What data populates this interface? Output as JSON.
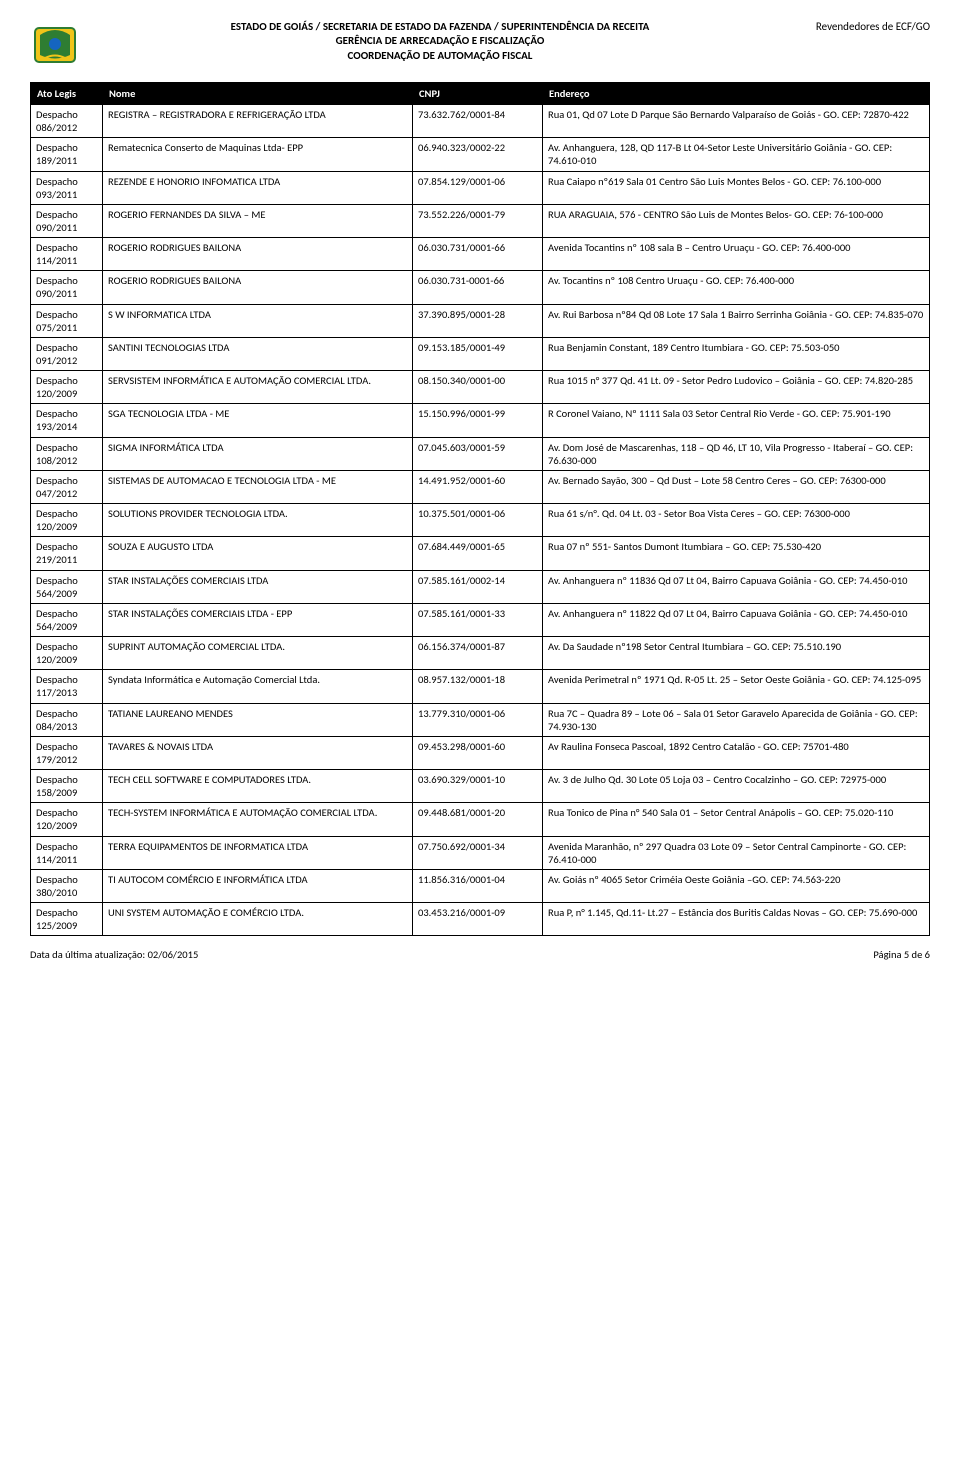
{
  "header": {
    "line1": "ESTADO DE GOIÁS / SECRETARIA DE ESTADO DA FAZENDA / SUPERINTENDÊNCIA DA RECEITA",
    "line2": "GERÊNCIA DE ARRECADAÇÃO E FISCALIZAÇÃO",
    "line3": "COORDENAÇÃO DE AUTOMAÇÃO FISCAL",
    "right": "Revendedores de ECF/GO"
  },
  "columns": {
    "ato": "Ato Legis",
    "nome": "Nome",
    "cnpj": "CNPJ",
    "endereco": "Endereço"
  },
  "rows": [
    {
      "ato": "Despacho 086/2012",
      "nome": "REGISTRA – REGISTRADORA E REFRIGERAÇÃO LTDA",
      "cnpj": "73.632.762/0001-84",
      "end": "Rua 01, Qd 07 Lote D Parque São Bernardo Valparaíso de Goiás - GO. CEP: 72870-422"
    },
    {
      "ato": "Despacho 189/2011",
      "nome": "Rematecnica Conserto de Maquinas Ltda- EPP",
      "cnpj": "06.940.323/0002-22",
      "end": "Av. Anhanguera, 128, QD 117-B Lt 04-Setor Leste Universitário Goiânia - GO. CEP: 74.610-010"
    },
    {
      "ato": "Despacho 093/2011",
      "nome": "REZENDE E HONORIO INFOMATICA LTDA",
      "cnpj": "07.854.129/0001-06",
      "end": "Rua Caiapo nº619 Sala 01 Centro  São Luis Montes Belos - GO. CEP: 76.100-000"
    },
    {
      "ato": "Despacho 090/2011",
      "nome": "ROGERIO FERNANDES DA SILVA – ME",
      "cnpj": "73.552.226/0001-79",
      "end": "RUA ARAGUAIA, 576 - CENTRO São Luis de Montes Belos- GO. CEP: 76-100-000"
    },
    {
      "ato": "Despacho 114/2011",
      "nome": "ROGERIO RODRIGUES BAILONA",
      "cnpj": "06.030.731/0001-66",
      "end": "Avenida Tocantins nº 108 sala B – Centro Uruaçu - GO. CEP: 76.400-000"
    },
    {
      "ato": "Despacho 090/2011",
      "nome": "ROGERIO RODRIGUES BAILONA",
      "cnpj": "06.030.731-0001-66",
      "end": "Av. Tocantins nº 108 Centro Uruaçu - GO. CEP: 76.400-000"
    },
    {
      "ato": "Despacho 075/2011",
      "nome": "S W INFORMATICA LTDA",
      "cnpj": "37.390.895/0001-28",
      "end": "Av. Rui Barbosa nº84 Qd 08 Lote 17 Sala 1 Bairro Serrinha Goiânia - GO. CEP: 74.835-070"
    },
    {
      "ato": "Despacho 091/2012",
      "nome": "SANTINI TECNOLOGIAS LTDA",
      "cnpj": "09.153.185/0001-49",
      "end": "Rua Benjamin Constant, 189 Centro Itumbiara - GO. CEP: 75.503-050"
    },
    {
      "ato": "Despacho 120/2009",
      "nome": "SERVSISTEM INFORMÁTICA E  AUTOMAÇÃO COMERCIAL LTDA.",
      "cnpj": "08.150.340/0001-00",
      "end": "Rua 1015 n° 377 Qd. 41 Lt. 09 -  Setor Pedro Ludovico – Goiânia – GO. CEP: 74.820-285"
    },
    {
      "ato": "Despacho 193/2014",
      "nome": "SGA TECNOLOGIA LTDA - ME",
      "cnpj": "15.150.996/0001-99",
      "end": "R Coronel Vaiano, Nº 1111 Sala 03 Setor Central Rio Verde - GO. CEP: 75.901-190"
    },
    {
      "ato": "Despacho 108/2012",
      "nome": "SIGMA INFORMÁTICA LTDA",
      "cnpj": "07.045.603/0001-59",
      "end": "Av. Dom José de Mascarenhas, 118 – QD 46, LT 10, Vila Progresso - Itaberaí – GO. CEP: 76.630-000"
    },
    {
      "ato": "Despacho 047/2012",
      "nome": "SISTEMAS DE AUTOMACAO E TECNOLOGIA LTDA - ME",
      "cnpj": "14.491.952/0001-60",
      "end": "Av. Bernado Sayão, 300 – Qd Dust – Lote 58 Centro Ceres – GO. CEP: 76300-000"
    },
    {
      "ato": "Despacho 120/2009",
      "nome": "SOLUTIONS PROVIDER TECNOLOGIA LTDA.",
      "cnpj": "10.375.501/0001-06",
      "end": "Rua 61 s/n°. Qd. 04 Lt. 03 - Setor Boa Vista Ceres – GO. CEP: 76300-000"
    },
    {
      "ato": "Despacho 219/2011",
      "nome": "SOUZA E AUGUSTO LTDA",
      "cnpj": "07.684.449/0001-65",
      "end": "Rua 07 nº 551- Santos Dumont Itumbiara – GO. CEP: 75.530-420"
    },
    {
      "ato": "Despacho 564/2009",
      "nome": "STAR INSTALAÇÕES COMERCIAIS LTDA",
      "cnpj": "07.585.161/0002-14",
      "end": "Av. Anhanguera nº 11836 Qd 07 Lt 04, Bairro Capuava Goiânia - GO. CEP: 74.450-010"
    },
    {
      "ato": "Despacho 564/2009",
      "nome": "STAR INSTALAÇÕES COMERCIAIS LTDA - EPP",
      "cnpj": "07.585.161/0001-33",
      "end": "Av. Anhanguera nº 11822 Qd 07 Lt 04, Bairro Capuava Goiânia - GO. CEP: 74.450-010"
    },
    {
      "ato": "Despacho 120/2009",
      "nome": "SUPRINT AUTOMAÇÃO COMERCIAL LTDA.",
      "cnpj": "06.156.374/0001-87",
      "end": "Av. Da Saudade nº198 Setor Central Itumbiara – GO. CEP: 75.510.190"
    },
    {
      "ato": "Despacho 117/2013",
      "nome": "Syndata Informática e Automação Comercial Ltda.",
      "cnpj": "08.957.132/0001-18",
      "end": "Avenida Perimetral nº 1971 Qd. R-05 Lt. 25 – Setor Oeste Goiânia - GO. CEP: 74.125-095"
    },
    {
      "ato": "Despacho 084/2013",
      "nome": "TATIANE LAUREANO MENDES",
      "cnpj": "13.779.310/0001-06",
      "end": "Rua 7C – Quadra 89 – Lote 06 – Sala 01 Setor Garavelo Aparecida de Goiânia - GO. CEP: 74.930-130"
    },
    {
      "ato": "Despacho 179/2012",
      "nome": "TAVARES & NOVAIS LTDA",
      "cnpj": "09.453.298/0001-60",
      "end": "Av Raulina Fonseca Pascoal, 1892 Centro Catalão - GO. CEP: 75701-480"
    },
    {
      "ato": "Despacho 158/2009",
      "nome": "TECH CELL SOFTWARE E COMPUTADORES LTDA.",
      "cnpj": "03.690.329/0001-10",
      "end": "Av. 3 de Julho Qd. 30 Lote 05 Loja 03 – Centro Cocalzinho – GO. CEP: 72975-000"
    },
    {
      "ato": "Despacho 120/2009",
      "nome": "TECH-SYSTEM INFORMÁTICA E AUTOMAÇÃO COMERCIAL LTDA.",
      "cnpj": "09.448.681/0001-20",
      "end": "Rua Tonico de Pina n° 540 Sala 01 – Setor Central Anápolis – GO. CEP: 75.020-110"
    },
    {
      "ato": "Despacho 114/2011",
      "nome": "TERRA EQUIPAMENTOS DE INFORMATICA  LTDA",
      "cnpj": "07.750.692/0001-34",
      "end": "Avenida Maranhão, nº 297  Quadra 03  Lote 09 – Setor Central  Campinorte - GO. CEP: 76.410-000"
    },
    {
      "ato": "Despacho 380/2010",
      "nome": "TI  AUTOCOM COMÉRCIO E INFORMÁTICA LTDA",
      "cnpj": "11.856.316/0001-04",
      "end": "Av. Goiás nº 4065 Setor Criméia Oeste Goiânia –GO. CEP: 74.563-220"
    },
    {
      "ato": "Despacho 125/2009",
      "nome": "UNI SYSTEM AUTOMAÇÃO E COMÉRCIO LTDA.",
      "cnpj": "03.453.216/0001-09",
      "end": "Rua P, n° 1.145, Qd.11- Lt.27 – Estância dos Buritis Caldas Novas – GO. CEP: 75.690-000"
    }
  ],
  "footer": {
    "left": "Data da última atualização: 02/06/2015",
    "right": "Página 5 de 6"
  }
}
